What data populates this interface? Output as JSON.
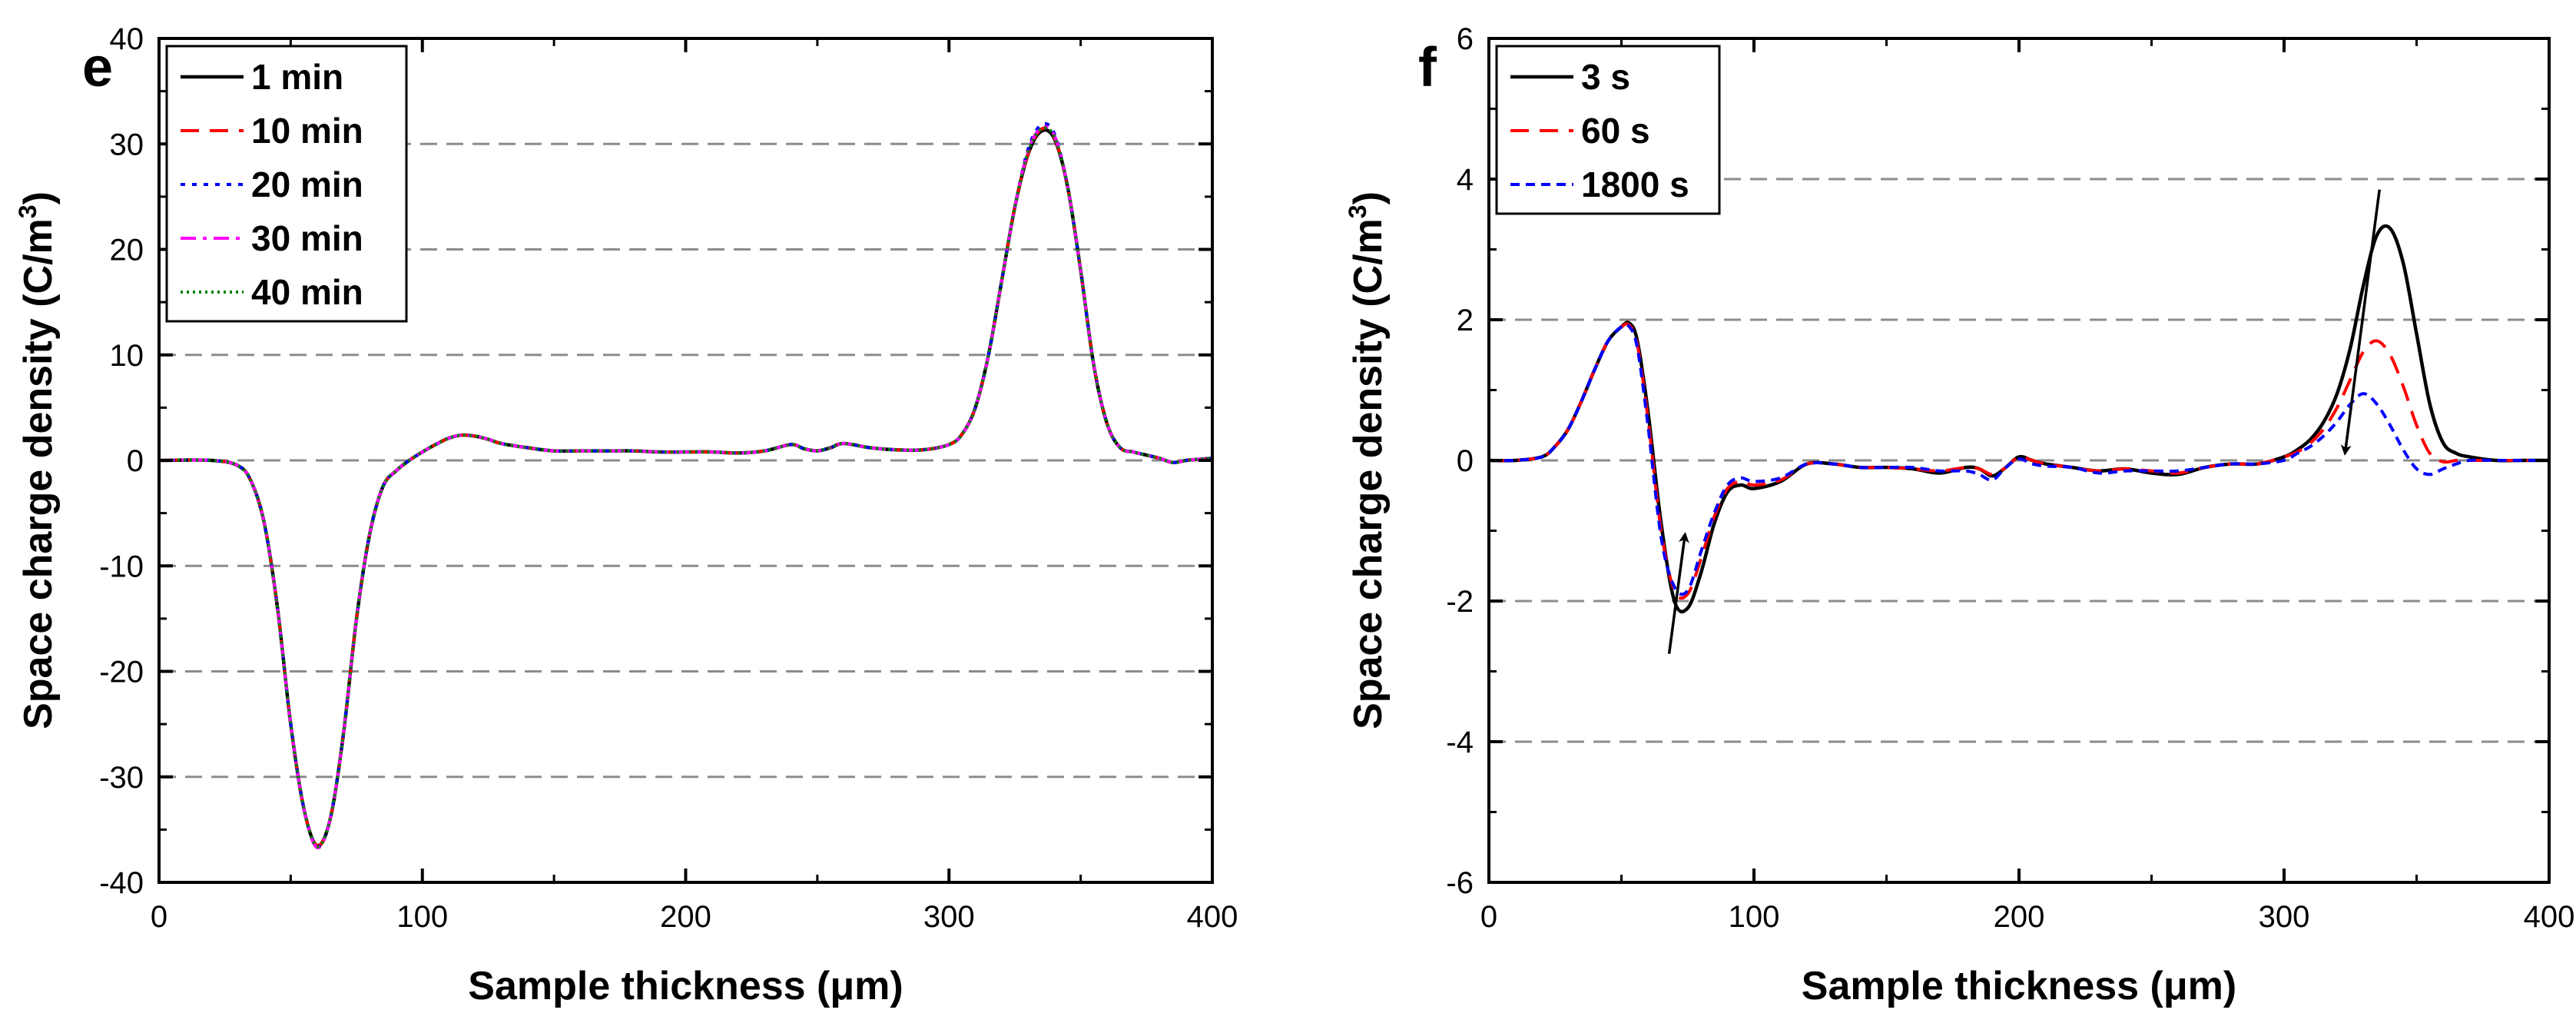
{
  "chart_data": [
    {
      "type": "line",
      "panel_label": "e",
      "xlabel": "Sample thickness (μm)",
      "ylabel_main": "Space charge density (C/m",
      "ylabel_sup": "3",
      "ylabel_close": ")",
      "xlim": [
        0,
        400
      ],
      "ylim": [
        -40,
        40
      ],
      "xticks": [
        0,
        100,
        200,
        300,
        400
      ],
      "yticks": [
        -40,
        -30,
        -20,
        -10,
        0,
        10,
        20,
        30,
        40
      ],
      "grid_y": [
        -30,
        -20,
        -10,
        0,
        10,
        20,
        30
      ],
      "legend_position": "top-left",
      "x": [
        0,
        20,
        30,
        35,
        40,
        45,
        50,
        55,
        60,
        65,
        70,
        75,
        80,
        85,
        90,
        95,
        100,
        105,
        110,
        115,
        120,
        125,
        130,
        140,
        150,
        160,
        170,
        180,
        190,
        200,
        210,
        220,
        230,
        240,
        245,
        250,
        255,
        260,
        270,
        280,
        290,
        300,
        305,
        310,
        315,
        320,
        325,
        330,
        335,
        340,
        345,
        350,
        355,
        360,
        365,
        370,
        375,
        380,
        385,
        390,
        395,
        400
      ],
      "series": [
        {
          "name": "1 min",
          "color": "#000000",
          "dash": "solid",
          "values": [
            0,
            0,
            -0.5,
            -2,
            -6,
            -14,
            -25,
            -33,
            -36.5,
            -34,
            -26,
            -15,
            -7,
            -2.5,
            -1,
            0,
            0.8,
            1.5,
            2.1,
            2.4,
            2.3,
            2.0,
            1.6,
            1.2,
            0.9,
            0.9,
            0.9,
            0.9,
            0.8,
            0.8,
            0.8,
            0.7,
            0.9,
            1.5,
            1.1,
            0.9,
            1.2,
            1.6,
            1.2,
            1.0,
            1.0,
            1.5,
            2.5,
            5,
            10,
            17,
            24,
            29,
            31.2,
            30.5,
            26,
            18,
            9,
            3.5,
            1.2,
            0.8,
            0.5,
            0.2,
            -0.2,
            0,
            0.1,
            0.2
          ]
        },
        {
          "name": "10 min",
          "color": "#ff0000",
          "dash": "dashed",
          "values": [
            0,
            0,
            -0.5,
            -2,
            -6,
            -14,
            -25,
            -33,
            -36.5,
            -34,
            -26,
            -15,
            -7,
            -2.5,
            -1,
            0,
            0.8,
            1.5,
            2.1,
            2.4,
            2.3,
            2.0,
            1.6,
            1.2,
            0.9,
            0.9,
            0.9,
            0.9,
            0.8,
            0.8,
            0.8,
            0.7,
            0.9,
            1.5,
            1.1,
            0.9,
            1.2,
            1.6,
            1.2,
            1.0,
            1.0,
            1.5,
            2.5,
            5,
            10,
            17,
            24,
            29,
            31.4,
            30.6,
            26,
            18,
            9,
            3.5,
            1.2,
            0.8,
            0.5,
            0.2,
            -0.2,
            0,
            0.1,
            0.2
          ]
        },
        {
          "name": "20 min",
          "color": "#0000ff",
          "dash": "dotted",
          "values": [
            0,
            0,
            -0.5,
            -2,
            -6,
            -14,
            -25,
            -33,
            -36.6,
            -34,
            -26,
            -15,
            -7,
            -2.5,
            -1,
            0,
            0.8,
            1.5,
            2.1,
            2.4,
            2.3,
            2.0,
            1.6,
            1.2,
            0.9,
            0.9,
            0.9,
            0.9,
            0.8,
            0.8,
            0.8,
            0.7,
            0.9,
            1.5,
            1.1,
            0.9,
            1.2,
            1.6,
            1.2,
            1.0,
            1.0,
            1.5,
            2.5,
            5,
            10,
            17,
            24,
            29.5,
            31.8,
            31.0,
            26,
            18,
            9,
            3.5,
            1.2,
            0.8,
            0.5,
            0.2,
            -0.2,
            0,
            0.1,
            0.2
          ]
        },
        {
          "name": "30 min",
          "color": "#ff00ff",
          "dash": "dashdot",
          "values": [
            0,
            0,
            -0.5,
            -2,
            -6,
            -14,
            -25,
            -33,
            -36.7,
            -34,
            -26,
            -15,
            -7,
            -2.5,
            -1,
            0,
            0.8,
            1.5,
            2.1,
            2.4,
            2.3,
            2.0,
            1.6,
            1.2,
            0.9,
            0.9,
            0.9,
            0.9,
            0.8,
            0.8,
            0.8,
            0.7,
            0.9,
            1.5,
            1.1,
            0.9,
            1.2,
            1.6,
            1.2,
            1.0,
            1.0,
            1.5,
            2.5,
            5,
            10,
            17,
            24,
            29.3,
            31.5,
            30.8,
            26,
            18,
            9,
            3.5,
            1.2,
            0.8,
            0.5,
            0.2,
            -0.2,
            0,
            0.1,
            0.2
          ]
        },
        {
          "name": "40 min",
          "color": "#008000",
          "dash": "densedot",
          "values": [
            0,
            0,
            -0.5,
            -2,
            -6,
            -14,
            -25,
            -33,
            -36.6,
            -34,
            -26,
            -15,
            -7,
            -2.5,
            -1,
            0,
            0.8,
            1.5,
            2.1,
            2.4,
            2.3,
            2.0,
            1.6,
            1.2,
            0.9,
            0.9,
            0.9,
            0.9,
            0.8,
            0.8,
            0.8,
            0.7,
            0.9,
            1.5,
            1.1,
            0.9,
            1.2,
            1.6,
            1.2,
            1.0,
            1.0,
            1.5,
            2.5,
            5,
            10,
            17,
            24,
            29.2,
            31.4,
            30.7,
            26,
            18,
            9,
            3.5,
            1.2,
            0.8,
            0.5,
            0.2,
            -0.2,
            0,
            0.1,
            0.2
          ]
        }
      ]
    },
    {
      "type": "line",
      "panel_label": "f",
      "xlabel": "Sample thickness (μm)",
      "ylabel_main": "Space charge density (C/m",
      "ylabel_sup": "3",
      "ylabel_close": ")",
      "xlim": [
        0,
        400
      ],
      "ylim": [
        -6,
        6
      ],
      "xticks": [
        0,
        100,
        200,
        300,
        400
      ],
      "yticks": [
        -6,
        -4,
        -2,
        0,
        2,
        4,
        6
      ],
      "grid_y": [
        -4,
        -2,
        0,
        2,
        4
      ],
      "legend_position": "top-left",
      "annotations": [
        {
          "type": "arrow",
          "from": [
            68,
            -2.75
          ],
          "to": [
            74,
            -1.05
          ]
        },
        {
          "type": "arrow",
          "from": [
            336,
            3.85
          ],
          "to": [
            323,
            0.1
          ]
        }
      ],
      "x": [
        0,
        10,
        20,
        25,
        30,
        35,
        40,
        45,
        50,
        53,
        56,
        60,
        65,
        70,
        75,
        80,
        85,
        90,
        95,
        100,
        110,
        120,
        130,
        140,
        150,
        160,
        170,
        180,
        185,
        190,
        195,
        200,
        205,
        210,
        220,
        230,
        240,
        250,
        260,
        270,
        280,
        290,
        300,
        305,
        310,
        315,
        320,
        325,
        330,
        335,
        340,
        345,
        350,
        355,
        360,
        365,
        370,
        380,
        390,
        400
      ],
      "series": [
        {
          "name": "3 s",
          "color": "#000000",
          "dash": "solid",
          "values": [
            0,
            0,
            0.05,
            0.2,
            0.45,
            0.85,
            1.3,
            1.7,
            1.9,
            1.95,
            1.7,
            0.7,
            -0.9,
            -2.0,
            -2.1,
            -1.6,
            -0.9,
            -0.45,
            -0.35,
            -0.4,
            -0.3,
            -0.05,
            -0.05,
            -0.1,
            -0.1,
            -0.12,
            -0.18,
            -0.1,
            -0.12,
            -0.22,
            -0.1,
            0.05,
            0.0,
            -0.05,
            -0.1,
            -0.15,
            -0.12,
            -0.18,
            -0.2,
            -0.1,
            -0.05,
            -0.05,
            0.05,
            0.15,
            0.3,
            0.55,
            0.95,
            1.6,
            2.5,
            3.2,
            3.3,
            2.8,
            1.8,
            0.8,
            0.25,
            0.1,
            0.05,
            0.0,
            0.0,
            0.0
          ]
        },
        {
          "name": "60 s",
          "color": "#ff0000",
          "dash": "dashed",
          "values": [
            0,
            0,
            0.05,
            0.2,
            0.45,
            0.85,
            1.3,
            1.7,
            1.9,
            1.92,
            1.65,
            0.6,
            -1.0,
            -1.85,
            -1.9,
            -1.4,
            -0.8,
            -0.4,
            -0.3,
            -0.35,
            -0.28,
            -0.05,
            -0.05,
            -0.1,
            -0.1,
            -0.12,
            -0.15,
            -0.1,
            -0.12,
            -0.2,
            -0.1,
            0.05,
            0.0,
            -0.05,
            -0.1,
            -0.15,
            -0.12,
            -0.15,
            -0.18,
            -0.1,
            -0.05,
            -0.05,
            0.05,
            0.12,
            0.25,
            0.45,
            0.75,
            1.15,
            1.55,
            1.7,
            1.5,
            1.05,
            0.5,
            0.1,
            -0.02,
            0.0,
            0.0,
            0.0,
            0.0,
            0.0
          ]
        },
        {
          "name": "1800 s",
          "color": "#0000ff",
          "dash": "shortdash",
          "values": [
            0,
            0,
            0.05,
            0.2,
            0.45,
            0.85,
            1.3,
            1.7,
            1.9,
            1.9,
            1.6,
            0.5,
            -1.1,
            -1.8,
            -1.85,
            -1.3,
            -0.75,
            -0.35,
            -0.25,
            -0.3,
            -0.25,
            -0.05,
            -0.05,
            -0.1,
            -0.1,
            -0.1,
            -0.15,
            -0.15,
            -0.2,
            -0.28,
            -0.1,
            0.02,
            -0.05,
            -0.08,
            -0.1,
            -0.18,
            -0.15,
            -0.15,
            -0.15,
            -0.1,
            -0.05,
            -0.05,
            0.0,
            0.1,
            0.2,
            0.35,
            0.55,
            0.8,
            0.95,
            0.8,
            0.5,
            0.15,
            -0.12,
            -0.2,
            -0.12,
            -0.05,
            0.0,
            0.0,
            0.0,
            0.0
          ]
        }
      ]
    }
  ]
}
